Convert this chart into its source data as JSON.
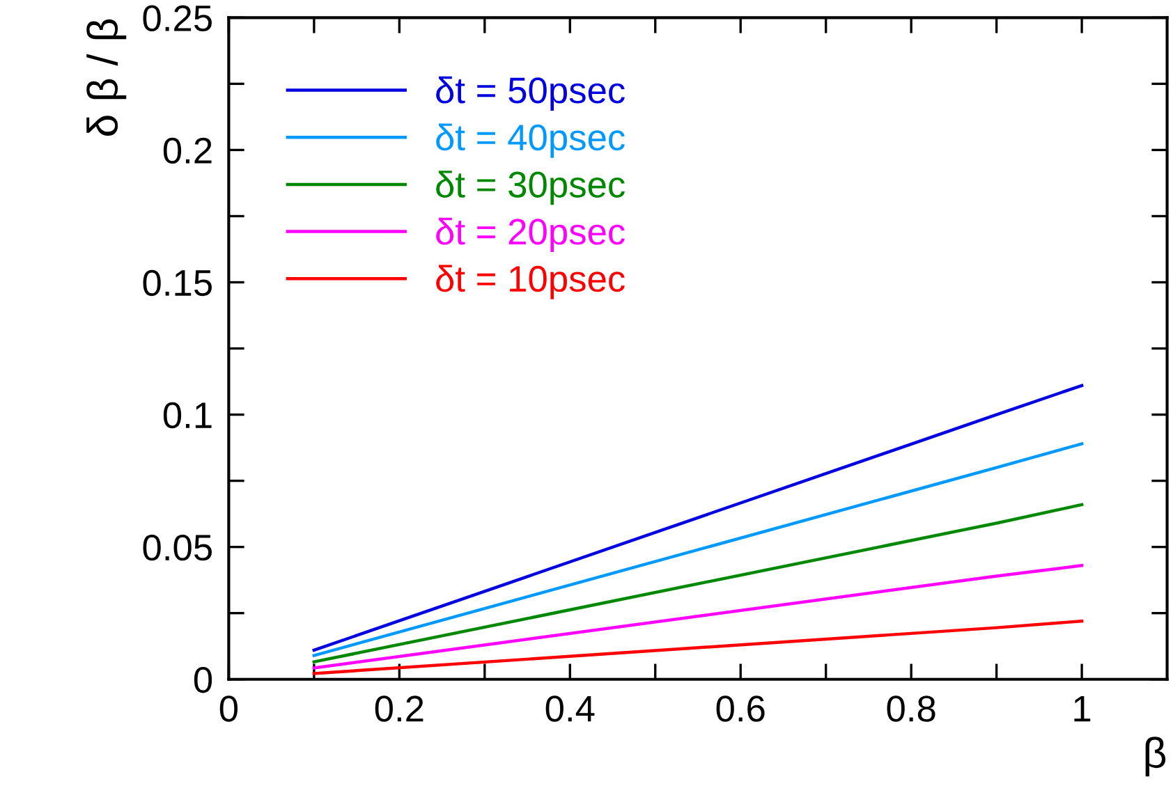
{
  "chart_data": {
    "type": "line",
    "xlabel": "β",
    "ylabel": "δ β / β",
    "xlim": [
      0,
      1.1
    ],
    "ylim": [
      0,
      0.25
    ],
    "xticks": [
      0,
      {
        "value": 0.1,
        "label": null
      },
      0.2,
      {
        "value": 0.3,
        "label": null
      },
      0.4,
      {
        "value": 0.5,
        "label": null
      },
      0.6,
      {
        "value": 0.7,
        "label": null
      },
      0.8,
      {
        "value": 0.9,
        "label": null
      },
      1
    ],
    "yticks": [
      0,
      {
        "value": 0.025,
        "label": null
      },
      0.05,
      {
        "value": 0.075,
        "label": null
      },
      0.1,
      {
        "value": 0.125,
        "label": null
      },
      0.15,
      {
        "value": 0.175,
        "label": null
      },
      0.2,
      {
        "value": 0.225,
        "label": null
      },
      0.25
    ],
    "x": [
      0.1,
      0.9,
      1
    ],
    "series": [
      {
        "name": "δt = 50psec",
        "color": "#0000e0",
        "values": [
          0.011,
          0.1,
          0.111
        ]
      },
      {
        "name": "δt = 40psec",
        "color": "#0099ff",
        "values": [
          0.009,
          0.08,
          0.089
        ]
      },
      {
        "name": "δt = 30psec",
        "color": "#008800",
        "values": [
          0.0066,
          0.059,
          0.066
        ]
      },
      {
        "name": "δt = 20psec",
        "color": "#ff00ff",
        "values": [
          0.0043,
          0.039,
          0.043
        ]
      },
      {
        "name": "δt = 10psec",
        "color": "#ff0000",
        "values": [
          0.0022,
          0.0195,
          0.022
        ]
      }
    ],
    "legend": "top left",
    "grid": false,
    "line_style": "solid",
    "marker": "none"
  }
}
